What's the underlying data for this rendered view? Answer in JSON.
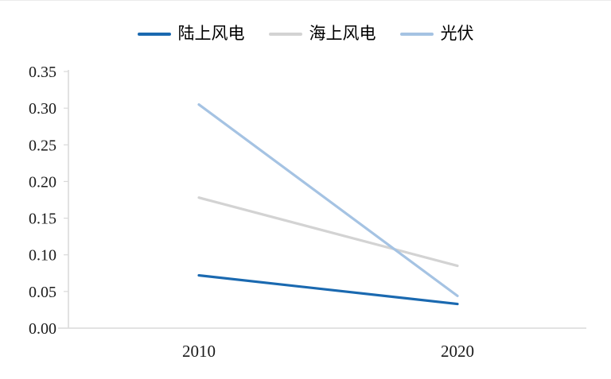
{
  "chart_data": {
    "type": "line",
    "categories": [
      "2010",
      "2020"
    ],
    "series": [
      {
        "name": "陆上风电",
        "color": "#1A69B0",
        "values": [
          0.072,
          0.033
        ]
      },
      {
        "name": "海上风电",
        "color": "#D3D3D3",
        "values": [
          0.178,
          0.085
        ]
      },
      {
        "name": "光伏",
        "color": "#A5C3E3",
        "values": [
          0.305,
          0.044
        ]
      }
    ],
    "ylim": [
      0,
      0.35
    ],
    "y_tick_labels": [
      "0.00",
      "0.05",
      "0.10",
      "0.15",
      "0.20",
      "0.25",
      "0.30",
      "0.35"
    ],
    "grid": false,
    "legend_position": "top",
    "axis_color": "#D9D9D9",
    "text_color": "#1A1A1A"
  }
}
